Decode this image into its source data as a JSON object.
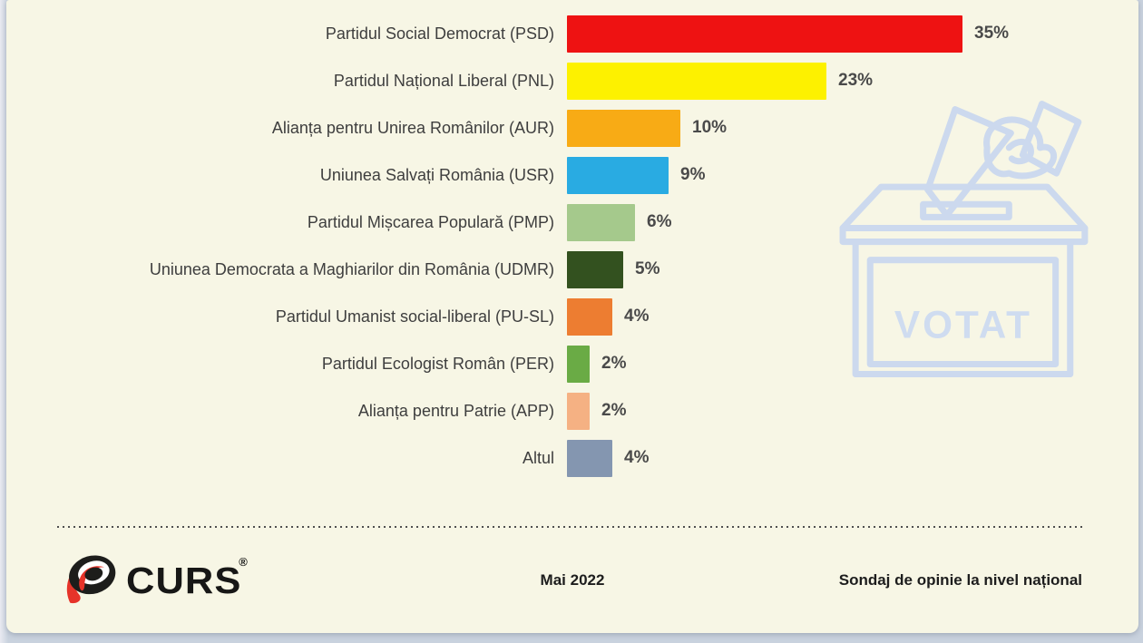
{
  "page": {
    "background": "#c9d2de",
    "card_background": "#f7f6e5"
  },
  "chart_data": {
    "type": "bar",
    "orientation": "horizontal",
    "unit": "%",
    "xlim": [
      0,
      35
    ],
    "grid": false,
    "legend": "none",
    "categories": [
      "Partidul Social Democrat (PSD)",
      "Partidul Național Liberal (PNL)",
      "Alianța pentru Unirea Românilor (AUR)",
      "Uniunea Salvați România (USR)",
      "Partidul Mișcarea Populară (PMP)",
      "Uniunea Democrata a Maghiarilor din România (UDMR)",
      "Partidul Umanist social-liberal (PU-SL)",
      "Partidul Ecologist Român (PER)",
      "Alianța pentru Patrie (APP)",
      "Altul"
    ],
    "values": [
      35,
      23,
      10,
      9,
      6,
      5,
      4,
      2,
      2,
      4
    ],
    "value_labels": [
      "35%",
      "23%",
      "10%",
      "9%",
      "6%",
      "5%",
      "4%",
      "2%",
      "2%",
      "4%"
    ],
    "colors": [
      "#ee1212",
      "#fdf100",
      "#f8ab15",
      "#29abe2",
      "#a5c98c",
      "#33511f",
      "#ed7d31",
      "#6aab45",
      "#f5b183",
      "#8496b0"
    ]
  },
  "watermark": {
    "name": "ballot-box",
    "label": "VOTAT",
    "color": "#ccd9ee"
  },
  "footer": {
    "logo_text": "CURS",
    "logo_registered": "®",
    "logo_black": "#1d1d1b",
    "logo_red": "#e63329",
    "date": "Mai 2022",
    "note": "Sondaj de opinie la nivel național"
  }
}
